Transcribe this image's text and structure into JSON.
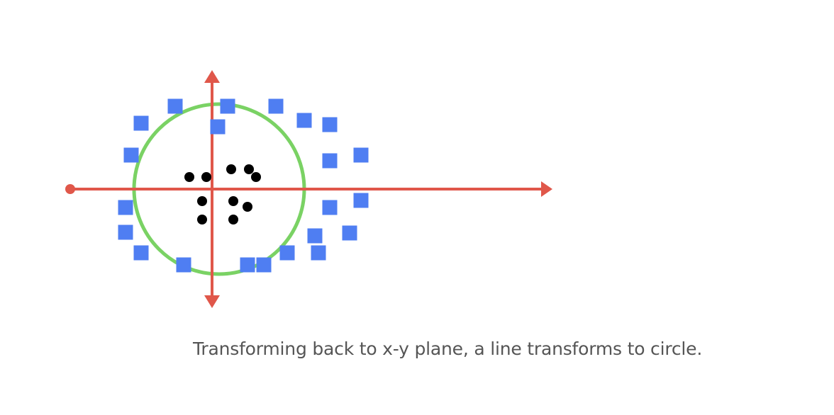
{
  "caption": "Transforming back to x-y plane, a line transforms to circle.",
  "colors": {
    "axis": "#e0574a",
    "circle": "#7ad264",
    "inner_points": "#000000",
    "outer_points": "#4f7ef2",
    "caption": "#555555"
  },
  "chart_data": {
    "type": "scatter",
    "title": "",
    "xlabel": "",
    "ylabel": "",
    "grid": false,
    "legend": "none",
    "xlim": [
      -2.4,
      5.2
    ],
    "ylim": [
      -1.85,
      1.85
    ],
    "decision_boundary": {
      "shape": "circle",
      "center": [
        0.1,
        0
      ],
      "radius": 1.2
    },
    "series": [
      {
        "marker": "circle",
        "points": [
          [
            -0.32,
            0.17
          ],
          [
            -0.08,
            0.17
          ],
          [
            0.27,
            0.28
          ],
          [
            0.52,
            0.28
          ],
          [
            0.62,
            0.17
          ],
          [
            -0.14,
            -0.17
          ],
          [
            0.3,
            -0.17
          ],
          [
            0.5,
            -0.25
          ],
          [
            -0.14,
            -0.43
          ],
          [
            0.3,
            -0.43
          ]
        ]
      },
      {
        "marker": "square",
        "points": [
          [
            -0.52,
            1.17
          ],
          [
            0.22,
            1.17
          ],
          [
            0.9,
            1.17
          ],
          [
            -1.0,
            0.93
          ],
          [
            1.3,
            0.97
          ],
          [
            1.66,
            0.91
          ],
          [
            -1.14,
            0.48
          ],
          [
            1.66,
            0.4
          ],
          [
            2.1,
            0.48
          ],
          [
            -1.22,
            -0.26
          ],
          [
            1.66,
            -0.26
          ],
          [
            2.1,
            -0.16
          ],
          [
            -1.22,
            -0.61
          ],
          [
            1.45,
            -0.66
          ],
          [
            1.94,
            -0.62
          ],
          [
            -1.0,
            -0.9
          ],
          [
            0.08,
            0.88
          ],
          [
            1.06,
            -0.9
          ],
          [
            1.5,
            -0.9
          ],
          [
            -0.4,
            -1.07
          ],
          [
            0.5,
            -1.07
          ],
          [
            0.73,
            -1.07
          ]
        ]
      }
    ]
  }
}
